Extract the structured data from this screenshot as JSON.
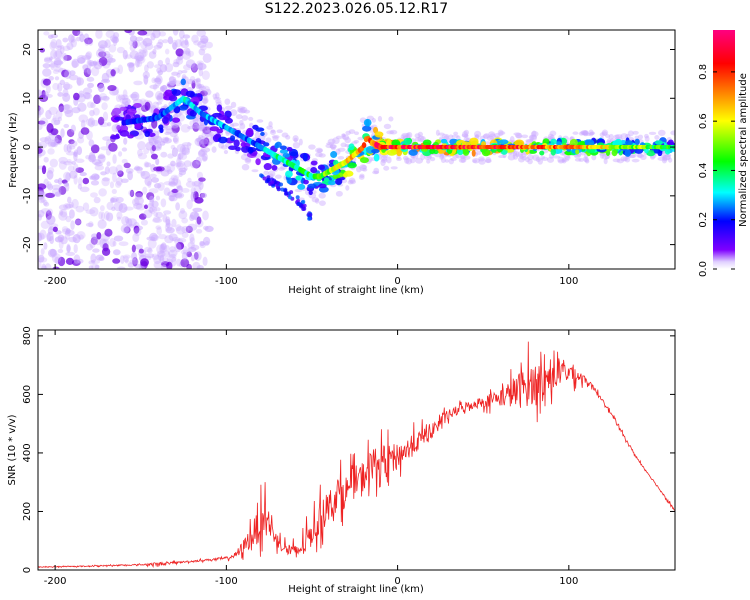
{
  "title": "S122.2023.026.05.12.R17",
  "chart_data": [
    {
      "type": "heatmap",
      "xlabel": "Height of straight line (km)",
      "ylabel": "Frequency (Hz)",
      "xlim": [
        -210,
        162
      ],
      "ylim": [
        -25,
        24
      ],
      "x_ticks": [
        -200,
        -100,
        0,
        100
      ],
      "y_ticks": [
        20,
        10,
        0,
        -10,
        -20
      ],
      "colorbar": {
        "label": "Normalized spectral amplitude",
        "range": [
          0,
          0.97
        ],
        "ticks": [
          "0.0",
          "0.2",
          "0.4",
          "0.6",
          "0.8"
        ],
        "colormap": [
          "#ffffff",
          "#7f00ff",
          "#0000ff",
          "#00ffff",
          "#00ff00",
          "#ffff00",
          "#ff8000",
          "#ff0000",
          "#ff0080"
        ]
      },
      "ridge": {
        "x": [
          -160,
          -140,
          -125,
          -115,
          -100,
          -90,
          -80,
          -70,
          -60,
          -50,
          -45,
          -40,
          -30,
          -20,
          -18,
          -15,
          -10,
          0,
          20,
          60,
          100,
          160
        ],
        "frequency": [
          5,
          6,
          10,
          7,
          4,
          2,
          0,
          -2,
          -4,
          -6,
          -6,
          -5,
          -3,
          0,
          2,
          1,
          0,
          0,
          0,
          0,
          0,
          0
        ],
        "amplitude": [
          0.25,
          0.3,
          0.4,
          0.35,
          0.35,
          0.3,
          0.35,
          0.45,
          0.5,
          0.5,
          0.55,
          0.6,
          0.75,
          0.8,
          0.7,
          0.9,
          0.95,
          0.9,
          0.95,
          0.9,
          0.8,
          0.5
        ]
      },
      "secondary_branch": {
        "x": [
          -80,
          -65,
          -55,
          -50
        ],
        "frequency": [
          -6,
          -9,
          -12,
          -15
        ]
      }
    },
    {
      "type": "line",
      "xlabel": "Height of straight line (km)",
      "ylabel": "SNR (10 * v/v)",
      "xlim": [
        -210,
        162
      ],
      "ylim": [
        0,
        820
      ],
      "x_ticks": [
        -200,
        -100,
        0,
        100
      ],
      "y_ticks": [
        0,
        200,
        400,
        600,
        800
      ],
      "series": [
        {
          "color": "#ee2222",
          "x": [
            -210,
            -190,
            -170,
            -150,
            -140,
            -130,
            -120,
            -110,
            -100,
            -95,
            -90,
            -85,
            -80,
            -77,
            -75,
            -70,
            -65,
            -60,
            -55,
            -50,
            -45,
            -40,
            -35,
            -30,
            -25,
            -20,
            -15,
            -10,
            -5,
            0,
            10,
            20,
            30,
            40,
            50,
            60,
            70,
            75,
            80,
            90,
            100,
            110,
            120,
            130,
            140,
            150,
            160,
            162
          ],
          "y": [
            10,
            12,
            15,
            18,
            20,
            25,
            30,
            35,
            40,
            50,
            80,
            120,
            160,
            200,
            150,
            100,
            70,
            60,
            80,
            130,
            180,
            220,
            260,
            270,
            300,
            320,
            360,
            370,
            380,
            390,
            430,
            480,
            530,
            560,
            575,
            590,
            610,
            630,
            640,
            660,
            680,
            650,
            580,
            480,
            380,
            300,
            220,
            200
          ],
          "noise": [
            2,
            2,
            3,
            3,
            10,
            5,
            5,
            5,
            8,
            15,
            40,
            70,
            100,
            90,
            60,
            40,
            35,
            40,
            60,
            80,
            90,
            90,
            90,
            90,
            90,
            90,
            90,
            90,
            80,
            70,
            60,
            40,
            30,
            25,
            30,
            50,
            100,
            120,
            120,
            80,
            60,
            20,
            10,
            8,
            6,
            6,
            6,
            6
          ]
        }
      ]
    }
  ]
}
